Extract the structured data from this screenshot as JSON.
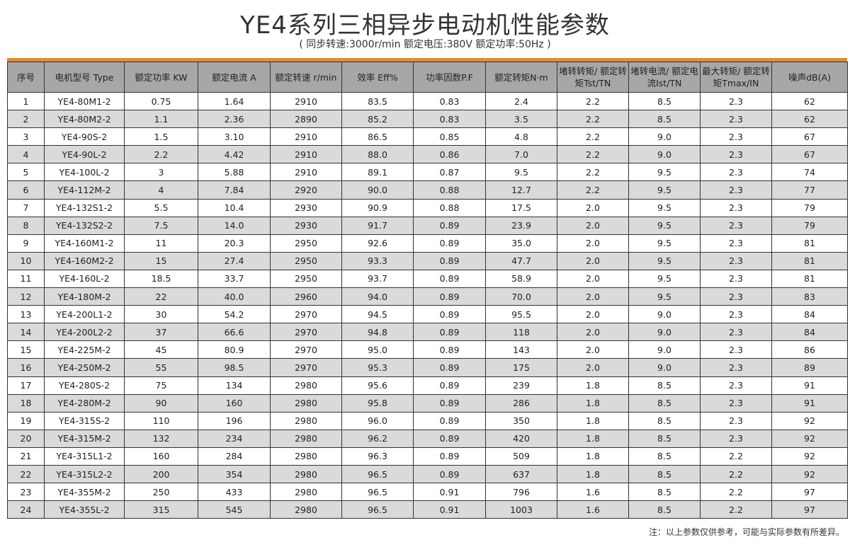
{
  "title": "YE4系列三相异步电动机性能参数",
  "subtitle": "( 同步转速:3000r/min   额定电压:380V   额定功率:50Hz )",
  "accent_color": "#e8892c",
  "table": {
    "headers": [
      "序号",
      "电机型号 Type",
      "额定功率 KW",
      "额定电流 A",
      "额定转速 r/min",
      "效率 Eff%",
      "功率因数P.F",
      "额定转矩N·m",
      "堵转转矩/ 额定转矩Tst/TN",
      "堵转电流/ 额定电流Ist/TN",
      "最大转矩/ 额定转矩Tmax/IN",
      "噪声dB(A)"
    ],
    "rows": [
      [
        "1",
        "YE4-80M1-2",
        "0.75",
        "1.64",
        "2910",
        "83.5",
        "0.83",
        "2.4",
        "2.2",
        "8.5",
        "2.3",
        "62"
      ],
      [
        "2",
        "YE4-80M2-2",
        "1.1",
        "2.36",
        "2890",
        "85.2",
        "0.83",
        "3.5",
        "2.2",
        "8.5",
        "2.3",
        "62"
      ],
      [
        "3",
        "YE4-90S-2",
        "1.5",
        "3.10",
        "2910",
        "86.5",
        "0.85",
        "4.8",
        "2.2",
        "9.0",
        "2.3",
        "67"
      ],
      [
        "4",
        "YE4-90L-2",
        "2.2",
        "4.42",
        "2910",
        "88.0",
        "0.86",
        "7.0",
        "2.2",
        "9.0",
        "2.3",
        "67"
      ],
      [
        "5",
        "YE4-100L-2",
        "3",
        "5.88",
        "2910",
        "89.1",
        "0.87",
        "9.5",
        "2.2",
        "9.5",
        "2.3",
        "74"
      ],
      [
        "6",
        "YE4-112M-2",
        "4",
        "7.84",
        "2920",
        "90.0",
        "0.88",
        "12.7",
        "2.2",
        "9.5",
        "2.3",
        "77"
      ],
      [
        "7",
        "YE4-132S1-2",
        "5.5",
        "10.4",
        "2930",
        "90.9",
        "0.88",
        "17.5",
        "2.0",
        "9.5",
        "2.3",
        "79"
      ],
      [
        "8",
        "YE4-132S2-2",
        "7.5",
        "14.0",
        "2930",
        "91.7",
        "0.89",
        "23.9",
        "2.0",
        "9.5",
        "2.3",
        "79"
      ],
      [
        "9",
        "YE4-160M1-2",
        "11",
        "20.3",
        "2950",
        "92.6",
        "0.89",
        "35.0",
        "2.0",
        "9.5",
        "2.3",
        "81"
      ],
      [
        "10",
        "YE4-160M2-2",
        "15",
        "27.4",
        "2950",
        "93.3",
        "0.89",
        "47.7",
        "2.0",
        "9.5",
        "2.3",
        "81"
      ],
      [
        "11",
        "YE4-160L-2",
        "18.5",
        "33.7",
        "2950",
        "93.7",
        "0.89",
        "58.9",
        "2.0",
        "9.5",
        "2.3",
        "81"
      ],
      [
        "12",
        "YE4-180M-2",
        "22",
        "40.0",
        "2960",
        "94.0",
        "0.89",
        "70.0",
        "2.0",
        "9.5",
        "2.3",
        "83"
      ],
      [
        "13",
        "YE4-200L1-2",
        "30",
        "54.2",
        "2970",
        "94.5",
        "0.89",
        "95.5",
        "2.0",
        "9.0",
        "2.3",
        "84"
      ],
      [
        "14",
        "YE4-200L2-2",
        "37",
        "66.6",
        "2970",
        "94.8",
        "0.89",
        "118",
        "2.0",
        "9.0",
        "2.3",
        "84"
      ],
      [
        "15",
        "YE4-225M-2",
        "45",
        "80.9",
        "2970",
        "95.0",
        "0.89",
        "143",
        "2.0",
        "9.0",
        "2.3",
        "86"
      ],
      [
        "16",
        "YE4-250M-2",
        "55",
        "98.5",
        "2970",
        "95.3",
        "0.89",
        "175",
        "2.0",
        "9.0",
        "2.3",
        "89"
      ],
      [
        "17",
        "YE4-280S-2",
        "75",
        "134",
        "2980",
        "95.6",
        "0.89",
        "239",
        "1.8",
        "8.5",
        "2.3",
        "91"
      ],
      [
        "18",
        "YE4-280M-2",
        "90",
        "160",
        "2980",
        "95.8",
        "0.89",
        "286",
        "1.8",
        "8.5",
        "2.3",
        "91"
      ],
      [
        "19",
        "YE4-315S-2",
        "110",
        "196",
        "2980",
        "96.0",
        "0.89",
        "350",
        "1.8",
        "8.5",
        "2.3",
        "92"
      ],
      [
        "20",
        "YE4-315M-2",
        "132",
        "234",
        "2980",
        "96.2",
        "0.89",
        "420",
        "1.8",
        "8.5",
        "2.3",
        "92"
      ],
      [
        "21",
        "YE4-315L1-2",
        "160",
        "284",
        "2980",
        "96.3",
        "0.89",
        "509",
        "1.8",
        "8.5",
        "2.2",
        "92"
      ],
      [
        "22",
        "YE4-315L2-2",
        "200",
        "354",
        "2980",
        "96.5",
        "0.89",
        "637",
        "1.8",
        "8.5",
        "2.2",
        "92"
      ],
      [
        "23",
        "YE4-355M-2",
        "250",
        "433",
        "2980",
        "96.5",
        "0.91",
        "796",
        "1.6",
        "8.5",
        "2.2",
        "97"
      ],
      [
        "24",
        "YE4-355L-2",
        "315",
        "545",
        "2980",
        "96.5",
        "0.91",
        "1003",
        "1.6",
        "8.5",
        "2.2",
        "97"
      ]
    ]
  },
  "note": "注：以上参数仅供参考，可能与实际参数有所差异。"
}
